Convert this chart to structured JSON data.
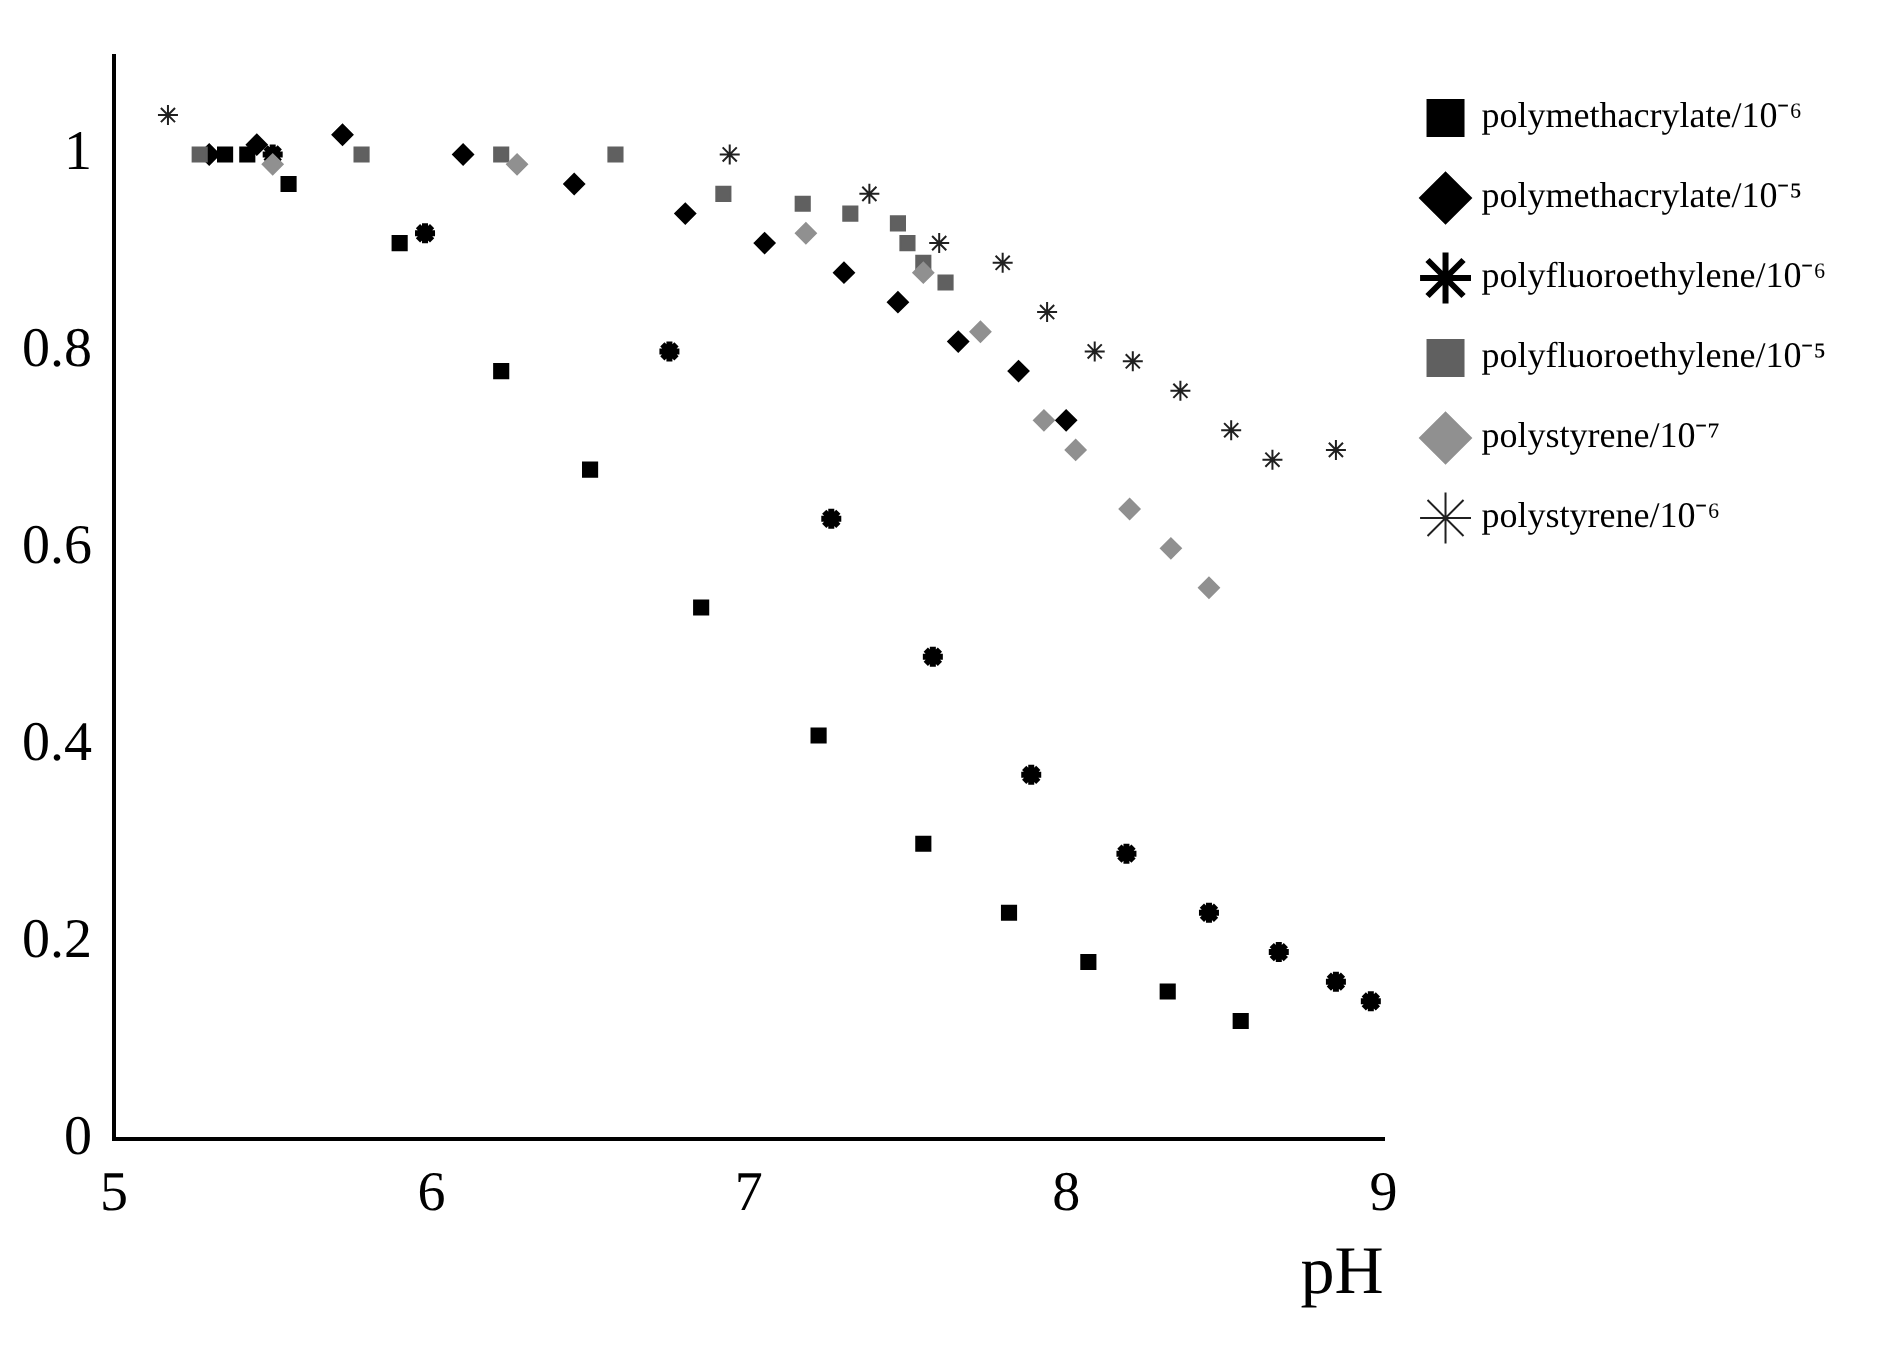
{
  "chart_data": {
    "type": "scatter",
    "xlabel": "pH",
    "xlim": [
      5,
      9
    ],
    "xticks": [
      5,
      6,
      7,
      8,
      9
    ],
    "ylim": [
      0,
      1.1
    ],
    "yticks": [
      0,
      0.2,
      0.4,
      0.6,
      0.8,
      1
    ],
    "grid": false,
    "legend": "right",
    "series": [
      {
        "name": "polymethacrylate/10⁻⁶",
        "color": "#000000",
        "marker": "square",
        "x": [
          5.35,
          5.42,
          5.55,
          5.9,
          6.22,
          6.5,
          6.85,
          7.22,
          7.55,
          7.82,
          8.07,
          8.32,
          8.55
        ],
        "values": [
          1.0,
          1.0,
          0.97,
          0.91,
          0.78,
          0.68,
          0.54,
          0.41,
          0.3,
          0.23,
          0.18,
          0.15,
          0.12
        ]
      },
      {
        "name": "polymethacrylate/10⁻⁵",
        "color": "#000000",
        "marker": "diamond",
        "x": [
          5.3,
          5.45,
          5.72,
          6.1,
          6.45,
          6.8,
          7.05,
          7.3,
          7.47,
          7.66,
          7.85,
          8.0
        ],
        "values": [
          1.0,
          1.01,
          1.02,
          1.0,
          0.97,
          0.94,
          0.91,
          0.88,
          0.85,
          0.81,
          0.78,
          0.73
        ]
      },
      {
        "name": "polyfluoroethylene/10⁻⁶",
        "color": "#000000",
        "marker": "cross",
        "x": [
          5.5,
          5.98,
          6.75,
          7.26,
          7.58,
          7.89,
          8.19,
          8.45,
          8.67,
          8.85,
          8.96
        ],
        "values": [
          1.0,
          0.92,
          0.8,
          0.63,
          0.49,
          0.37,
          0.29,
          0.23,
          0.19,
          0.16,
          0.14
        ]
      },
      {
        "name": "polyfluoroethylene/10⁻⁵",
        "color": "#606060",
        "marker": "square",
        "x": [
          5.27,
          5.78,
          6.22,
          6.58,
          6.92,
          7.17,
          7.32,
          7.47,
          7.5,
          7.55,
          7.62
        ],
        "values": [
          1.0,
          1.0,
          1.0,
          1.0,
          0.96,
          0.95,
          0.94,
          0.93,
          0.91,
          0.89,
          0.87
        ]
      },
      {
        "name": "polystyrene/10⁻⁷",
        "color": "#909090",
        "marker": "diamond",
        "x": [
          5.5,
          6.27,
          7.18,
          7.55,
          7.73,
          7.93,
          8.03,
          8.2,
          8.33,
          8.45
        ],
        "values": [
          0.99,
          0.99,
          0.92,
          0.88,
          0.82,
          0.73,
          0.7,
          0.64,
          0.6,
          0.56
        ]
      },
      {
        "name": "polystyrene/10⁻⁶",
        "color": "#202020",
        "marker": "cross",
        "x": [
          5.17,
          6.94,
          7.38,
          7.6,
          7.8,
          7.94,
          8.09,
          8.21,
          8.36,
          8.52,
          8.65,
          8.85
        ],
        "values": [
          1.04,
          1.0,
          0.96,
          0.91,
          0.89,
          0.84,
          0.8,
          0.79,
          0.76,
          0.72,
          0.69,
          0.7
        ]
      }
    ]
  }
}
